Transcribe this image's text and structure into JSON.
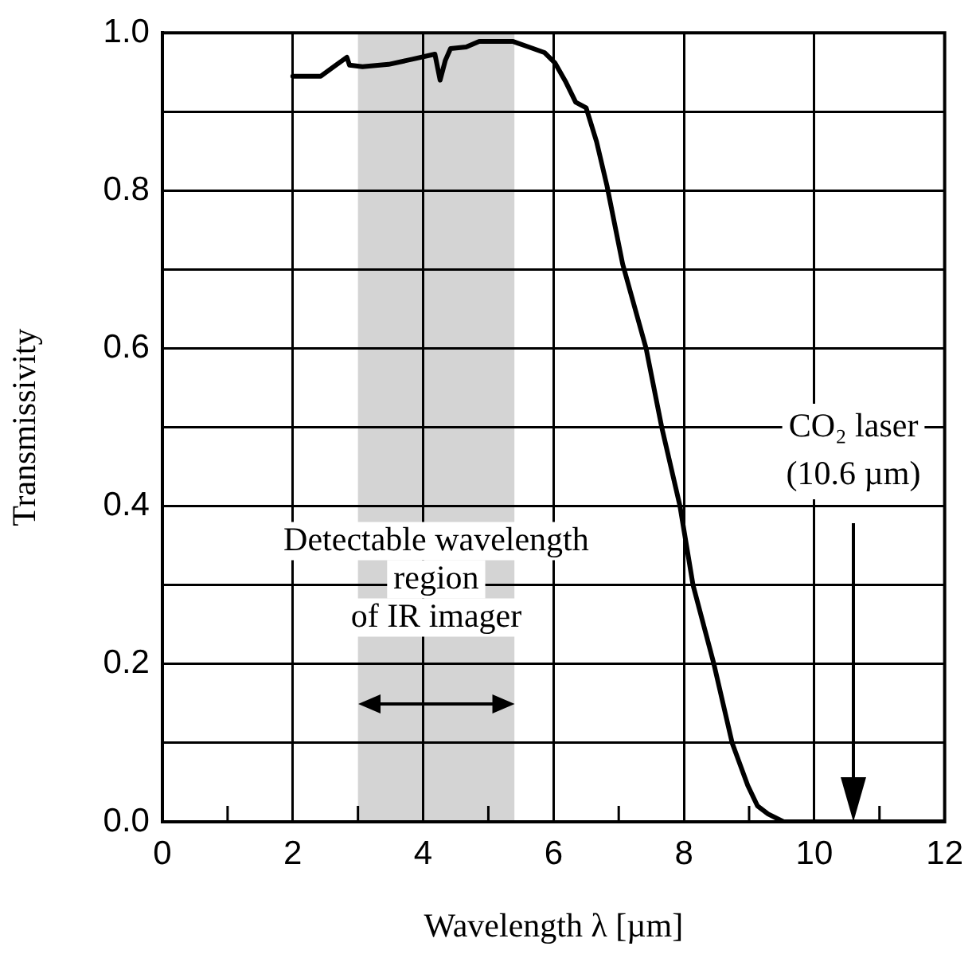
{
  "chart_data": {
    "type": "line",
    "xlabel": "Wavelength λ [µm]",
    "ylabel": "Transmissivity",
    "color": "#000000",
    "grid": true,
    "x": [
      2.0,
      2.43,
      2.66,
      2.83,
      2.87,
      3.07,
      3.47,
      3.86,
      4.18,
      4.26,
      4.34,
      4.42,
      4.66,
      4.86,
      5.38,
      5.62,
      5.86,
      6.02,
      6.18,
      6.34,
      6.5,
      6.66,
      6.82,
      7.06,
      7.42,
      7.66,
      7.94,
      8.14,
      8.46,
      8.74,
      8.98,
      9.13,
      9.29,
      9.53,
      12.0
    ],
    "values": [
      0.945,
      0.945,
      0.959,
      0.969,
      0.959,
      0.957,
      0.96,
      0.967,
      0.973,
      0.94,
      0.965,
      0.98,
      0.982,
      0.989,
      0.989,
      0.982,
      0.975,
      0.962,
      0.939,
      0.912,
      0.905,
      0.862,
      0.806,
      0.707,
      0.6,
      0.5,
      0.4,
      0.3,
      0.2,
      0.1,
      0.046,
      0.02,
      0.01,
      0.0,
      0.0
    ],
    "xlim": [
      0,
      12
    ],
    "xticks": [
      0,
      {
        "value": 1,
        "label": null
      },
      2,
      {
        "value": 3,
        "label": null
      },
      4,
      {
        "value": 5,
        "label": null
      },
      6,
      {
        "value": 7,
        "label": null
      },
      8,
      {
        "value": 9,
        "label": null
      },
      10,
      {
        "value": 11,
        "label": null
      },
      12
    ],
    "ylim": [
      0,
      1
    ],
    "yticks": [
      {
        "value": 0,
        "label": "0.0"
      },
      {
        "value": 0.1,
        "label": null
      },
      0.2,
      {
        "value": 0.3,
        "label": null
      },
      0.4,
      {
        "value": 0.5,
        "label": null
      },
      0.6,
      {
        "value": 0.7,
        "label": null
      },
      0.8,
      {
        "value": 0.9,
        "label": null
      },
      {
        "value": 1,
        "label": "1.0"
      }
    ],
    "bands": [
      {
        "axis": "x",
        "from": 3,
        "to": 5.4,
        "label": "Detectable wavelength\nregion\nof IR imager",
        "color": "#d4d4d4"
      }
    ],
    "ref_lines": [
      {
        "axis": "x",
        "value": 10.6,
        "label": "CO₂ laser\n(10.6 µm)"
      }
    ]
  }
}
